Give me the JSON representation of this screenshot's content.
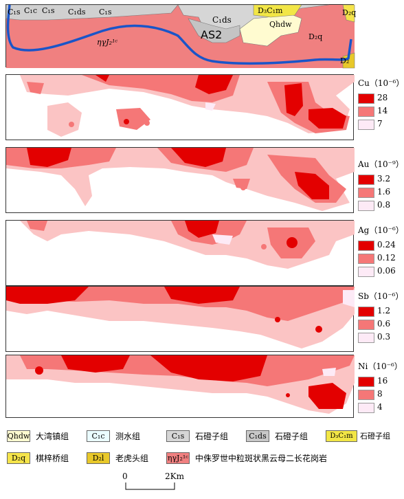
{
  "geology_labels": {
    "c1s_a": "C₁s",
    "c1c": "C₁c",
    "c1s_b": "C₁s",
    "c1ds_a": "C₁ds",
    "c1s_c": "C₁s",
    "c1ds_b": "C₁ds",
    "as2": "AS2",
    "d3c1m": "D₃C₁m",
    "qhdw": "Qhdw",
    "d2q_a": "D₂q",
    "d2q_b": "D₂q",
    "granite": "ηγJ₂¹ᶜ",
    "d2": "D₂"
  },
  "panels": [
    {
      "element": "Cu（10⁻⁶）",
      "levels": [
        "28",
        "14",
        "7"
      ]
    },
    {
      "element": "Au（10⁻⁹）",
      "levels": [
        "3.2",
        "1.6",
        "0.8"
      ]
    },
    {
      "element": "Ag（10⁻⁶）",
      "levels": [
        "0.24",
        "0.12",
        "0.06"
      ]
    },
    {
      "element": "Sb（10⁻⁶）",
      "levels": [
        "1.2",
        "0.6",
        "0.3"
      ]
    },
    {
      "element": "Ni（10⁻⁶）",
      "levels": [
        "16",
        "8",
        "4"
      ]
    }
  ],
  "legend": {
    "items": [
      {
        "code": "Qhdw",
        "name": "大湾镇组",
        "color": "#fffbd0"
      },
      {
        "code": "C₁c",
        "name": "测水组",
        "color": "#eafcff"
      },
      {
        "code": "C₁s",
        "name": "石磴子组",
        "color": "#d6d6d6"
      },
      {
        "code": "C₁ds",
        "name": "石磴子组",
        "color": "#c8c8c8"
      },
      {
        "code": "D₃C₁m",
        "name": "石磴子组",
        "color": "#f2e646"
      },
      {
        "code": "D₂q",
        "name": "棋梓桥组",
        "color": "#f5e44a"
      },
      {
        "code": "D₂l",
        "name": "老虎头组",
        "color": "#e8c82a"
      },
      {
        "code": "ηγJ₂¹ᶜ",
        "name": "中侏罗世中粒斑状黑云母二长花岗岩",
        "color": "#f08080"
      }
    ]
  },
  "scale": {
    "zero": "0",
    "end": "2Km"
  },
  "colors": {
    "high": "#e30000",
    "mid": "#f57777",
    "low": "#fbc4c4",
    "lowest": "#fdeaf6"
  }
}
